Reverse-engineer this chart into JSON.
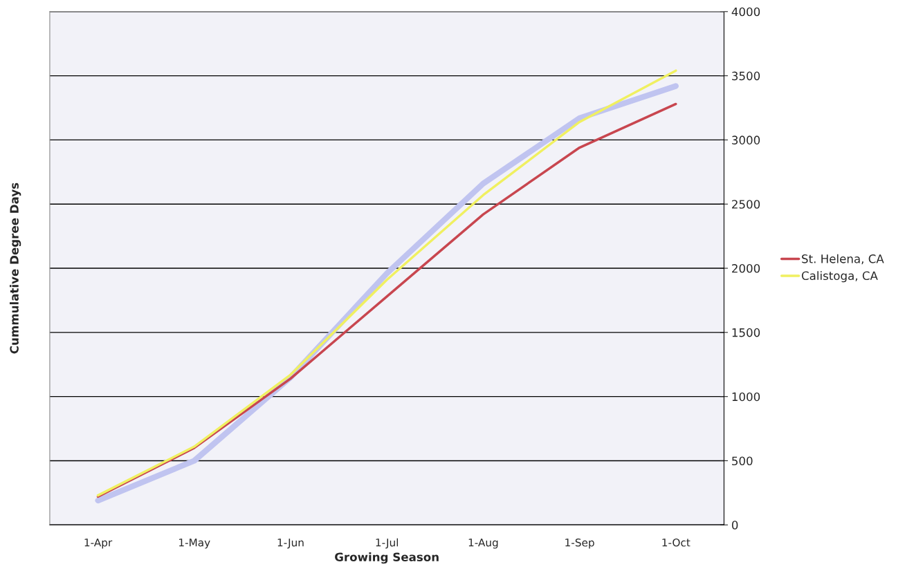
{
  "chart_data": {
    "type": "line",
    "xlabel": "Growing Season",
    "ylabel": "Cummulative Degree Days",
    "categories": [
      "1-Apr",
      "1-May",
      "1-Jun",
      "1-Jul",
      "1-Aug",
      "1-Sep",
      "1-Oct"
    ],
    "series": [
      {
        "color": "#c0c4f0",
        "values": [
          190,
          500,
          1150,
          1960,
          2660,
          3170,
          3420
        ]
      },
      {
        "name": "St. Helena, CA",
        "color": "#c8464f",
        "values": [
          220,
          600,
          1140,
          1780,
          2420,
          2940,
          3280
        ]
      },
      {
        "name": "Calistoga, CA",
        "color": "#f0f060",
        "values": [
          230,
          610,
          1170,
          1910,
          2570,
          3140,
          3540
        ]
      }
    ],
    "ylim": [
      0,
      4000
    ],
    "yticks": [
      0,
      500,
      1000,
      1500,
      2000,
      2500,
      3000,
      3500,
      4000
    ],
    "grid": "y",
    "legend": "right"
  }
}
